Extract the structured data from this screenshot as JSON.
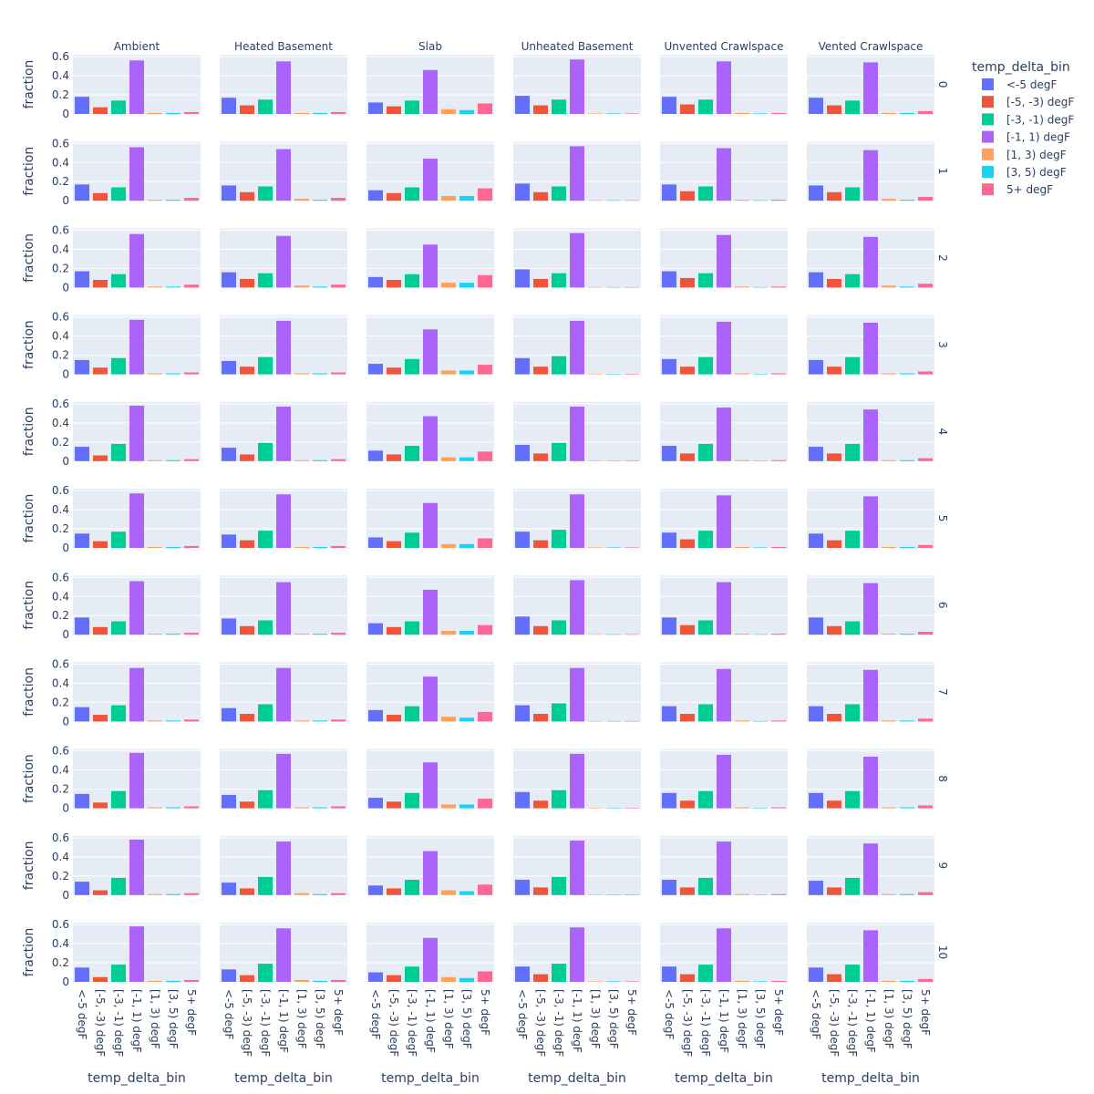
{
  "chart_data": {
    "type": "bar",
    "facet_columns": [
      "Ambient",
      "Heated Basement",
      "Slab",
      "Unheated Basement",
      "Unvented Crawlspace",
      "Vented Crawlspace"
    ],
    "facet_rows": [
      "0",
      "1",
      "2",
      "3",
      "4",
      "5",
      "6",
      "7",
      "8",
      "9",
      "10"
    ],
    "categories": [
      "<-5 degF",
      "[-5, -3) degF",
      "[-3, -1) degF",
      "[-1, 1) degF",
      "[1, 3) degF",
      "[3, 5) degF",
      "5+ degF"
    ],
    "colors": [
      "#636efa",
      "#EF553B",
      "#00cc96",
      "#ab63fa",
      "#FFA15A",
      "#19d3f3",
      "#FF6692"
    ],
    "xlabel": "temp_delta_bin",
    "ylabel": "fraction",
    "ylim": [
      0,
      0.62
    ],
    "yticks": [
      "0",
      "0.2",
      "0.4",
      "0.6"
    ],
    "legend_title": "temp_delta_bin",
    "legend_position": "right",
    "grid": true,
    "values": [
      [
        [
          0.18,
          0.07,
          0.14,
          0.56,
          0.01,
          0.01,
          0.02
        ],
        [
          0.17,
          0.09,
          0.15,
          0.55,
          0.01,
          0.01,
          0.02
        ],
        [
          0.12,
          0.08,
          0.14,
          0.46,
          0.05,
          0.04,
          0.11
        ],
        [
          0.19,
          0.09,
          0.15,
          0.57,
          0.005,
          0.005,
          0.005
        ],
        [
          0.18,
          0.1,
          0.15,
          0.55,
          0.01,
          0.005,
          0.01
        ],
        [
          0.17,
          0.09,
          0.14,
          0.54,
          0.01,
          0.01,
          0.03
        ]
      ],
      [
        [
          0.17,
          0.08,
          0.14,
          0.56,
          0.01,
          0.01,
          0.03
        ],
        [
          0.16,
          0.09,
          0.15,
          0.54,
          0.02,
          0.01,
          0.03
        ],
        [
          0.11,
          0.08,
          0.14,
          0.44,
          0.05,
          0.05,
          0.13
        ],
        [
          0.18,
          0.09,
          0.15,
          0.57,
          0.005,
          0.005,
          0.005
        ],
        [
          0.17,
          0.1,
          0.15,
          0.55,
          0.01,
          0.005,
          0.01
        ],
        [
          0.16,
          0.09,
          0.14,
          0.53,
          0.02,
          0.01,
          0.04
        ]
      ],
      [
        [
          0.17,
          0.08,
          0.14,
          0.56,
          0.01,
          0.01,
          0.03
        ],
        [
          0.16,
          0.09,
          0.15,
          0.54,
          0.02,
          0.01,
          0.03
        ],
        [
          0.11,
          0.08,
          0.14,
          0.45,
          0.05,
          0.05,
          0.13
        ],
        [
          0.19,
          0.09,
          0.15,
          0.57,
          0.005,
          0.005,
          0.005
        ],
        [
          0.17,
          0.1,
          0.15,
          0.55,
          0.01,
          0.005,
          0.01
        ],
        [
          0.16,
          0.09,
          0.14,
          0.53,
          0.02,
          0.01,
          0.04
        ]
      ],
      [
        [
          0.15,
          0.07,
          0.17,
          0.57,
          0.01,
          0.01,
          0.02
        ],
        [
          0.14,
          0.08,
          0.18,
          0.56,
          0.01,
          0.01,
          0.02
        ],
        [
          0.11,
          0.07,
          0.16,
          0.47,
          0.04,
          0.04,
          0.1
        ],
        [
          0.17,
          0.08,
          0.19,
          0.56,
          0.005,
          0.005,
          0.005
        ],
        [
          0.16,
          0.08,
          0.18,
          0.55,
          0.01,
          0.005,
          0.01
        ],
        [
          0.15,
          0.08,
          0.18,
          0.54,
          0.01,
          0.01,
          0.03
        ]
      ],
      [
        [
          0.15,
          0.06,
          0.18,
          0.58,
          0.01,
          0.01,
          0.02
        ],
        [
          0.14,
          0.07,
          0.19,
          0.57,
          0.01,
          0.01,
          0.02
        ],
        [
          0.11,
          0.07,
          0.16,
          0.47,
          0.04,
          0.04,
          0.1
        ],
        [
          0.17,
          0.08,
          0.19,
          0.57,
          0.005,
          0.005,
          0.005
        ],
        [
          0.16,
          0.08,
          0.18,
          0.56,
          0.01,
          0.005,
          0.01
        ],
        [
          0.15,
          0.08,
          0.18,
          0.54,
          0.01,
          0.01,
          0.03
        ]
      ],
      [
        [
          0.15,
          0.07,
          0.17,
          0.57,
          0.01,
          0.01,
          0.02
        ],
        [
          0.14,
          0.08,
          0.18,
          0.56,
          0.01,
          0.01,
          0.02
        ],
        [
          0.11,
          0.07,
          0.16,
          0.47,
          0.04,
          0.04,
          0.1
        ],
        [
          0.17,
          0.08,
          0.19,
          0.56,
          0.005,
          0.005,
          0.005
        ],
        [
          0.16,
          0.09,
          0.18,
          0.55,
          0.01,
          0.005,
          0.01
        ],
        [
          0.15,
          0.08,
          0.18,
          0.54,
          0.01,
          0.01,
          0.03
        ]
      ],
      [
        [
          0.18,
          0.08,
          0.14,
          0.56,
          0.01,
          0.01,
          0.02
        ],
        [
          0.17,
          0.09,
          0.15,
          0.55,
          0.01,
          0.01,
          0.02
        ],
        [
          0.12,
          0.08,
          0.14,
          0.47,
          0.04,
          0.04,
          0.1
        ],
        [
          0.19,
          0.09,
          0.15,
          0.57,
          0.005,
          0.005,
          0.005
        ],
        [
          0.18,
          0.1,
          0.15,
          0.55,
          0.01,
          0.005,
          0.01
        ],
        [
          0.18,
          0.09,
          0.14,
          0.54,
          0.01,
          0.01,
          0.03
        ]
      ],
      [
        [
          0.15,
          0.07,
          0.17,
          0.56,
          0.01,
          0.01,
          0.02
        ],
        [
          0.14,
          0.08,
          0.18,
          0.56,
          0.01,
          0.01,
          0.02
        ],
        [
          0.12,
          0.07,
          0.16,
          0.47,
          0.05,
          0.04,
          0.1
        ],
        [
          0.17,
          0.08,
          0.19,
          0.56,
          0.005,
          0.005,
          0.005
        ],
        [
          0.16,
          0.08,
          0.18,
          0.55,
          0.01,
          0.005,
          0.01
        ],
        [
          0.16,
          0.08,
          0.18,
          0.54,
          0.01,
          0.01,
          0.03
        ]
      ],
      [
        [
          0.15,
          0.06,
          0.18,
          0.58,
          0.01,
          0.01,
          0.02
        ],
        [
          0.14,
          0.07,
          0.19,
          0.57,
          0.01,
          0.01,
          0.02
        ],
        [
          0.11,
          0.07,
          0.16,
          0.48,
          0.04,
          0.04,
          0.1
        ],
        [
          0.17,
          0.08,
          0.19,
          0.57,
          0.005,
          0.005,
          0.005
        ],
        [
          0.16,
          0.08,
          0.18,
          0.56,
          0.01,
          0.005,
          0.01
        ],
        [
          0.16,
          0.08,
          0.18,
          0.54,
          0.01,
          0.01,
          0.03
        ]
      ],
      [
        [
          0.14,
          0.05,
          0.18,
          0.58,
          0.01,
          0.01,
          0.02
        ],
        [
          0.13,
          0.07,
          0.19,
          0.56,
          0.02,
          0.01,
          0.02
        ],
        [
          0.1,
          0.07,
          0.16,
          0.46,
          0.05,
          0.04,
          0.11
        ],
        [
          0.16,
          0.08,
          0.19,
          0.57,
          0.005,
          0.005,
          0.005
        ],
        [
          0.16,
          0.08,
          0.18,
          0.56,
          0.01,
          0.005,
          0.01
        ],
        [
          0.15,
          0.08,
          0.18,
          0.54,
          0.01,
          0.01,
          0.03
        ]
      ],
      [
        [
          0.15,
          0.05,
          0.18,
          0.58,
          0.01,
          0.01,
          0.02
        ],
        [
          0.13,
          0.07,
          0.19,
          0.56,
          0.02,
          0.01,
          0.02
        ],
        [
          0.1,
          0.07,
          0.16,
          0.46,
          0.05,
          0.04,
          0.11
        ],
        [
          0.16,
          0.08,
          0.19,
          0.57,
          0.005,
          0.005,
          0.005
        ],
        [
          0.16,
          0.08,
          0.18,
          0.56,
          0.01,
          0.005,
          0.01
        ],
        [
          0.15,
          0.08,
          0.18,
          0.54,
          0.01,
          0.01,
          0.03
        ]
      ]
    ]
  }
}
